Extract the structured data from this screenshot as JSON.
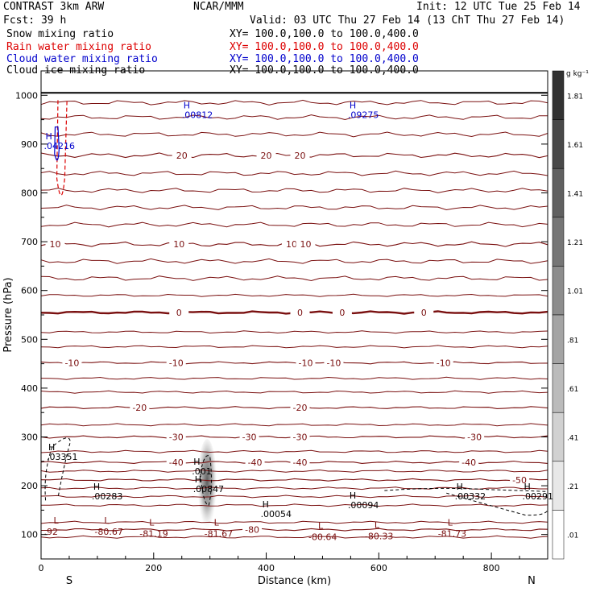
{
  "header": {
    "model": "CONTRAST  3km ARW",
    "center": "NCAR/MMM",
    "init": "Init: 12 UTC Tue 25 Feb 14",
    "fcst": "Fcst:   39 h",
    "valid": "Valid: 03 UTC Thu 27 Feb 14 (13 ChT Thu 27 Feb 14)",
    "fields": [
      {
        "name": "Snow mixing ratio",
        "xy": "XY= 100.0,100.0 to 100.0,400.0",
        "color": "#000000"
      },
      {
        "name": "Rain water mixing ratio",
        "xy": "XY= 100.0,100.0 to 100.0,400.0",
        "color": "#dd0000"
      },
      {
        "name": "Cloud water mixing ratio",
        "xy": "XY= 100.0,100.0 to 100.0,400.0",
        "color": "#0000cc"
      },
      {
        "name": "Cloud ice mixing ratio",
        "xy": "XY= 100.0,100.0 to 100.0,400.0",
        "color": "#000000"
      }
    ]
  },
  "chart_data": {
    "type": "contour-cross-section",
    "xlabel": "Distance (km)",
    "ylabel": "Pressure (hPa)",
    "xlim": [
      0,
      900
    ],
    "ylim": [
      1050,
      50
    ],
    "x_ticks": [
      0,
      200,
      400,
      600,
      800
    ],
    "y_ticks": [
      100,
      200,
      300,
      400,
      500,
      600,
      700,
      800,
      900,
      1000
    ],
    "left_end_label": "S",
    "right_end_label": "N",
    "isotherm_color": "#7a1010",
    "temperature_isotherms": [
      {
        "value": -80,
        "label": "-80",
        "label_x": 375,
        "pressure": 110
      },
      {
        "value": -50,
        "label": "-50",
        "label_x": 850,
        "pressure": 212
      },
      {
        "value": -40,
        "label": "-40",
        "label_positions_km": [
          240,
          380,
          460,
          760
        ],
        "pressure": 248
      },
      {
        "value": -30,
        "label": "-30",
        "label_positions_km": [
          240,
          370,
          460,
          770
        ],
        "pressure": 300
      },
      {
        "value": -20,
        "label": "-20",
        "label_positions_km": [
          175,
          460
        ],
        "pressure": 360
      },
      {
        "value": -10,
        "label": "-10",
        "label_positions_km": [
          55,
          240,
          470,
          520,
          715
        ],
        "pressure": 452
      },
      {
        "value": 0,
        "label": "0",
        "label_positions_km": [
          245,
          460,
          535,
          680
        ],
        "pressure": 555
      },
      {
        "value": 10,
        "label": "10",
        "label_positions_km": [
          25,
          245,
          445,
          470
        ],
        "pressure": 695
      },
      {
        "value": 20,
        "label": "20",
        "label_positions_km": [
          250,
          400,
          460
        ],
        "pressure": 877
      }
    ],
    "tropopause_lows": [
      {
        "label": "L",
        "value": ".92",
        "x": 5,
        "pressure": 114
      },
      {
        "label": "L",
        "value": "-80.67",
        "x": 95,
        "pressure": 114
      },
      {
        "label": "L",
        "value": "-81.19",
        "x": 175,
        "pressure": 110
      },
      {
        "label": "L",
        "value": "-81.67",
        "x": 290,
        "pressure": 110
      },
      {
        "label": "L",
        "value": "-80.64",
        "x": 475,
        "pressure": 104
      },
      {
        "label": "L",
        "value": "-80.33",
        "x": 575,
        "pressure": 105
      },
      {
        "label": "L",
        "value": "-81.73",
        "x": 705,
        "pressure": 110
      }
    ],
    "highs": [
      {
        "label": "H",
        "value": ".03351",
        "x": 10,
        "pressure": 263,
        "color": "#000000"
      },
      {
        "label": "H",
        "value": ".00283",
        "x": 90,
        "pressure": 182,
        "color": "#000000"
      },
      {
        "label": "H",
        "value": ".00847",
        "x": 270,
        "pressure": 197,
        "color": "#000000"
      },
      {
        "label": "H",
        "value": ".001",
        "x": 268,
        "pressure": 233,
        "color": "#000000"
      },
      {
        "label": "H",
        "value": ".00054",
        "x": 390,
        "pressure": 146,
        "color": "#000000"
      },
      {
        "label": "H",
        "value": ".00094",
        "x": 545,
        "pressure": 164,
        "color": "#000000"
      },
      {
        "label": "H",
        "value": ".00332",
        "x": 735,
        "pressure": 182,
        "color": "#000000"
      },
      {
        "label": "H",
        "value": ".00291",
        "x": 855,
        "pressure": 182,
        "color": "#000000"
      },
      {
        "label": "H",
        "value": ".04216",
        "x": 5,
        "pressure": 900,
        "color": "#0000cc"
      },
      {
        "label": "H",
        "value": ".00812",
        "x": 250,
        "pressure": 963,
        "color": "#0000cc"
      },
      {
        "label": "H",
        "value": ".09275",
        "x": 545,
        "pressure": 963,
        "color": "#0000cc"
      }
    ],
    "colorbar": {
      "unit": "g kg⁻¹",
      "labels": [
        "1.81",
        "1.61",
        "1.41",
        "1.21",
        "1.01",
        ".81",
        ".61",
        ".41",
        ".21",
        ".01"
      ]
    }
  }
}
